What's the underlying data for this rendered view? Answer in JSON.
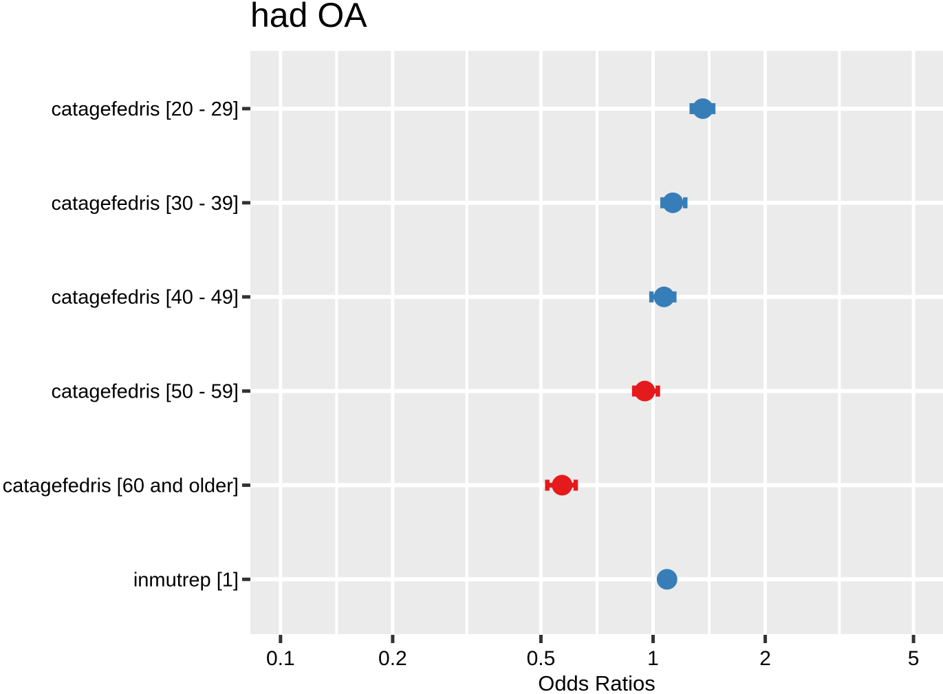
{
  "title": "had OA",
  "axis": {
    "x_label": "Odds Ratios",
    "x_tick_labels": [
      "0.1",
      "0.2",
      "0.5",
      "1",
      "2",
      "5"
    ]
  },
  "colors": {
    "positive_point": "#377EB8",
    "negative_point": "#E41A1C",
    "panel_background": "#EBEBEB",
    "gridline": "#FFFFFF",
    "tick": "#333333",
    "text": "#000000"
  },
  "chart_data": {
    "type": "scatter",
    "subtype": "forest-plot-odds-ratios",
    "title": "had OA",
    "xlabel": "Odds Ratios",
    "ylabel": "",
    "x_scale": "log10",
    "xlim": [
      0.083,
      6.0
    ],
    "x_major_ticks": [
      0.1,
      0.2,
      0.5,
      1,
      2,
      5
    ],
    "x_minor_gridlines": [
      0.1414,
      0.3162,
      0.7071,
      1.4142,
      3.1623
    ],
    "grid": true,
    "legend": false,
    "categories": [
      "catagefedris [20 - 29]",
      "catagefedris [30 - 39]",
      "catagefedris [40 - 49]",
      "catagefedris [50 - 59]",
      "catagefedris [60 and older]",
      "inmutrep [1]"
    ],
    "series": [
      {
        "label": "catagefedris [20 - 29]",
        "odds_ratio": 1.36,
        "ci_low": 1.27,
        "ci_high": 1.45,
        "direction": "positive",
        "color": "#377EB8"
      },
      {
        "label": "catagefedris [30 - 39]",
        "odds_ratio": 1.13,
        "ci_low": 1.06,
        "ci_high": 1.22,
        "direction": "positive",
        "color": "#377EB8"
      },
      {
        "label": "catagefedris [40 - 49]",
        "odds_ratio": 1.07,
        "ci_low": 0.99,
        "ci_high": 1.14,
        "direction": "positive",
        "color": "#377EB8"
      },
      {
        "label": "catagefedris [50 - 59]",
        "odds_ratio": 0.95,
        "ci_low": 0.89,
        "ci_high": 1.03,
        "direction": "negative",
        "color": "#E41A1C"
      },
      {
        "label": "catagefedris [60 and older]",
        "odds_ratio": 0.57,
        "ci_low": 0.52,
        "ci_high": 0.62,
        "direction": "negative",
        "color": "#E41A1C"
      },
      {
        "label": "inmutrep [1]",
        "odds_ratio": 1.09,
        "ci_low": 1.06,
        "ci_high": 1.12,
        "direction": "positive",
        "color": "#377EB8"
      }
    ]
  }
}
